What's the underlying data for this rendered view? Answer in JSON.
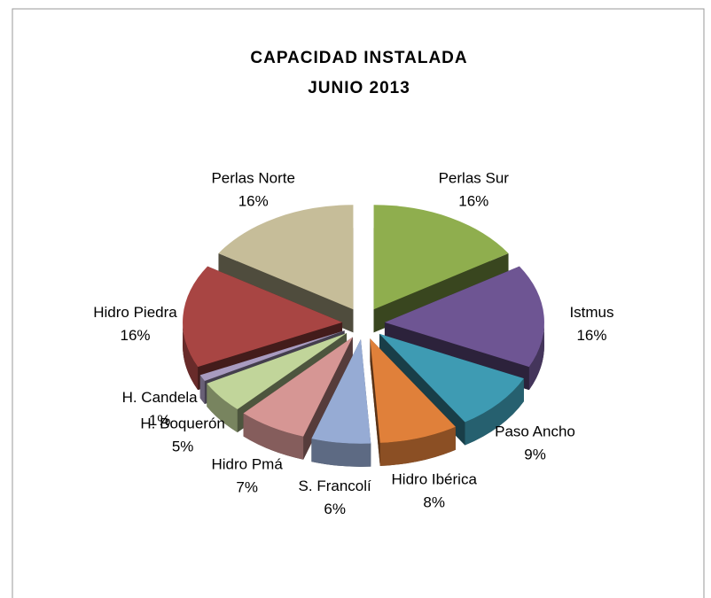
{
  "chart_data": {
    "type": "pie3d",
    "title": "CAPACIDAD INSTALADA",
    "subtitle": "JUNIO 2013",
    "categories": [
      "Perlas Sur",
      "Istmus",
      "Paso Ancho",
      "Hidro Ibérica",
      "S. Francolí",
      "Hidro Pmá",
      "H. Boquerón",
      "H. Candela",
      "Hidro Piedra",
      "Perlas Norte"
    ],
    "values": [
      16,
      16,
      9,
      8,
      6,
      7,
      5,
      1,
      16,
      16
    ],
    "value_labels": [
      "16%",
      "16%",
      "9%",
      "8%",
      "6%",
      "7%",
      "5%",
      "1%",
      "16%",
      "16%"
    ],
    "colors": [
      "#8fae4e",
      "#6e5593",
      "#3e9bb3",
      "#e0803a",
      "#96abd4",
      "#d69694",
      "#c1d59a",
      "#a99bc0",
      "#a84543",
      "#c6bd99"
    ]
  }
}
